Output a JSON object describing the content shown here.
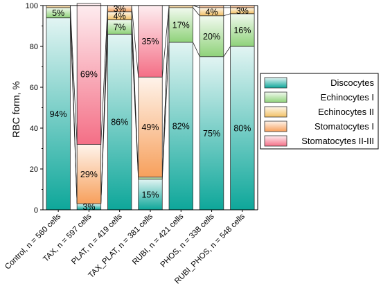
{
  "chart_data": {
    "type": "bar",
    "stacked": true,
    "title": "",
    "xlabel": "",
    "ylabel": "RBC form, %",
    "ylim": [
      0,
      100
    ],
    "yticks": [
      0,
      20,
      40,
      60,
      80,
      100
    ],
    "categories": [
      "Control, n = 560 cells",
      "TAX, n = 597 cells",
      "PLAT, n = 419 cells",
      "TAX_PLAT, n = 381 cells",
      "RUBI, n = 421 cells",
      "PHOS, n = 338 cells",
      "RUBI_PHOS, n = 548 cells"
    ],
    "series": [
      {
        "name": "Discocytes",
        "color": "#0ea79a",
        "values": [
          94,
          3,
          86,
          15,
          82,
          75,
          80
        ],
        "labels": [
          "94%",
          "3%",
          "86%",
          "15%",
          "82%",
          "75%",
          "80%"
        ]
      },
      {
        "name": "Echinocytes I",
        "color": "#8fd27a",
        "values": [
          5,
          0,
          7,
          1,
          17,
          20,
          16
        ],
        "labels": [
          "5%",
          "",
          "7%",
          "",
          "17%",
          "20%",
          "16%"
        ]
      },
      {
        "name": "Echinocytes II",
        "color": "#f2c064",
        "values": [
          1,
          0,
          4,
          0,
          1,
          4,
          3
        ],
        "labels": [
          "",
          "",
          "4%",
          "",
          "",
          "4%",
          "3%"
        ]
      },
      {
        "name": "Stomatocytes I",
        "color": "#f7a05c",
        "values": [
          0,
          29,
          3,
          49,
          0,
          1,
          1
        ],
        "labels": [
          "",
          "29%",
          "3%",
          "49%",
          "",
          "",
          ""
        ]
      },
      {
        "name": "Stomatocytes II-III",
        "color": "#f46f86",
        "values": [
          0,
          69,
          0,
          35,
          0,
          0,
          0
        ],
        "labels": [
          "",
          "69%",
          "",
          "35%",
          "",
          "",
          ""
        ]
      }
    ],
    "legend_position": "right",
    "grid": false
  }
}
